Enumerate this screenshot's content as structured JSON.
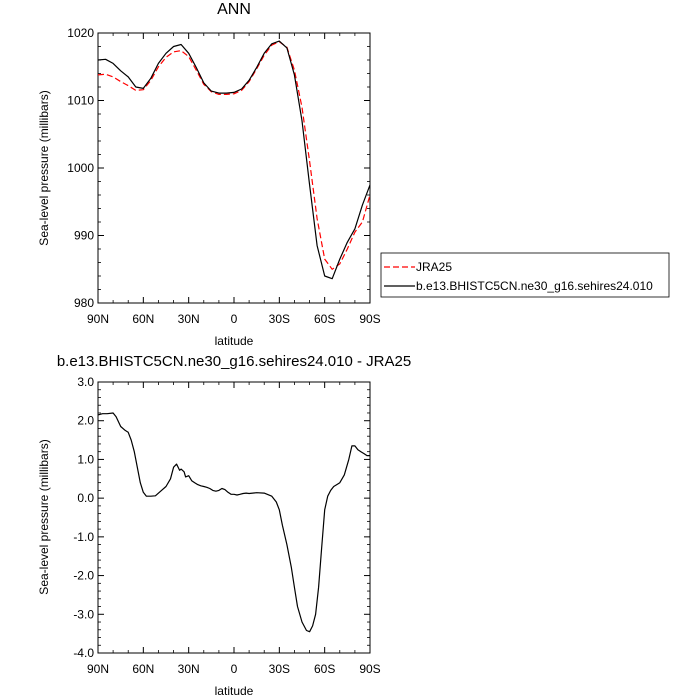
{
  "chart_data": [
    {
      "type": "line",
      "title": "ANN",
      "xlabel": "latitude",
      "ylabel": "Sea-level pressure (millibars)",
      "x_tick_labels": [
        "90N",
        "60N",
        "30N",
        "0",
        "30S",
        "60S",
        "90S"
      ],
      "x_ticks": [
        90,
        60,
        30,
        0,
        -30,
        -60,
        -90
      ],
      "xlim": [
        90,
        -90
      ],
      "ylim": [
        980,
        1020
      ],
      "y_ticks": [
        980,
        990,
        1000,
        1010,
        1020
      ],
      "y_tick_labels": [
        "980",
        "990",
        "1000",
        "1010",
        "1020"
      ],
      "legend_position": "right",
      "series": [
        {
          "name": "JRA25",
          "color": "#ff0000",
          "dash": "dashed",
          "x": [
            90,
            85,
            80,
            75,
            70,
            65,
            60,
            55,
            50,
            45,
            40,
            35,
            30,
            25,
            20,
            15,
            10,
            5,
            0,
            -5,
            -10,
            -15,
            -20,
            -25,
            -30,
            -35,
            -40,
            -45,
            -50,
            -55,
            -60,
            -65,
            -70,
            -75,
            -80,
            -85,
            -90
          ],
          "y": [
            1013.8,
            1013.9,
            1013.5,
            1012.8,
            1012.2,
            1011.5,
            1011.6,
            1013.0,
            1015.0,
            1016.4,
            1017.2,
            1017.4,
            1016.5,
            1014.5,
            1012.4,
            1011.3,
            1010.9,
            1010.9,
            1011.0,
            1011.5,
            1012.8,
            1014.7,
            1016.7,
            1018.2,
            1018.7,
            1017.9,
            1014.5,
            1009.0,
            1001.0,
            992.5,
            986.5,
            985.0,
            985.8,
            988.0,
            990.5,
            992.0,
            996.0
          ]
        },
        {
          "name": "b.e13.BHISTC5CN.ne30_g16.sehires24.010",
          "color": "#000000",
          "dash": "solid",
          "x": [
            90,
            85,
            80,
            75,
            70,
            65,
            60,
            55,
            50,
            45,
            40,
            35,
            30,
            25,
            20,
            15,
            10,
            5,
            0,
            -5,
            -10,
            -15,
            -20,
            -25,
            -30,
            -35,
            -40,
            -45,
            -50,
            -55,
            -60,
            -65,
            -70,
            -75,
            -80,
            -85,
            -90
          ],
          "y": [
            1016.0,
            1016.1,
            1015.5,
            1014.4,
            1013.5,
            1012.0,
            1011.8,
            1013.3,
            1015.5,
            1017.0,
            1018.0,
            1018.3,
            1017.0,
            1014.9,
            1012.6,
            1011.4,
            1011.1,
            1011.1,
            1011.2,
            1011.7,
            1013.0,
            1014.9,
            1017.0,
            1018.4,
            1018.8,
            1017.8,
            1013.8,
            1007.0,
            997.5,
            988.5,
            984.0,
            983.6,
            986.5,
            989.0,
            991.0,
            994.5,
            997.5
          ]
        }
      ]
    },
    {
      "type": "line",
      "title": "b.e13.BHISTC5CN.ne30_g16.sehires24.010 - JRA25",
      "xlabel": "latitude",
      "ylabel": "Sea-level pressure (millibars)",
      "x_tick_labels": [
        "90N",
        "60N",
        "30N",
        "0",
        "30S",
        "60S",
        "90S"
      ],
      "x_ticks": [
        90,
        60,
        30,
        0,
        -30,
        -60,
        -90
      ],
      "xlim": [
        90,
        -90
      ],
      "ylim": [
        -4.0,
        3.0
      ],
      "y_ticks": [
        -4.0,
        -3.0,
        -2.0,
        -1.0,
        0.0,
        1.0,
        2.0,
        3.0
      ],
      "y_tick_labels": [
        "-4.0",
        "-3.0",
        "-2.0",
        "-1.0",
        "0.0",
        "1.0",
        "2.0",
        "3.0"
      ],
      "series": [
        {
          "color": "#000000",
          "dash": "solid",
          "x": [
            90,
            87,
            84,
            80,
            78,
            75,
            72,
            70,
            68,
            66,
            64,
            62,
            60,
            58,
            55,
            52,
            48,
            45,
            42,
            40,
            38,
            36,
            35,
            33,
            32,
            30,
            28,
            26,
            24,
            22,
            20,
            18,
            16,
            14,
            12,
            10,
            8,
            6,
            4,
            2,
            0,
            -2,
            -4,
            -6,
            -8,
            -10,
            -15,
            -20,
            -25,
            -28,
            -30,
            -32,
            -35,
            -38,
            -40,
            -42,
            -45,
            -48,
            -50,
            -52,
            -54,
            -56,
            -58,
            -60,
            -62,
            -64,
            -66,
            -68,
            -70,
            -73,
            -76,
            -78,
            -80,
            -82,
            -84,
            -86,
            -88,
            -90
          ],
          "y": [
            2.15,
            2.18,
            2.18,
            2.2,
            2.1,
            1.85,
            1.75,
            1.7,
            1.5,
            1.2,
            0.8,
            0.4,
            0.15,
            0.05,
            0.05,
            0.06,
            0.2,
            0.3,
            0.5,
            0.8,
            0.88,
            0.72,
            0.75,
            0.68,
            0.55,
            0.58,
            0.45,
            0.4,
            0.35,
            0.32,
            0.3,
            0.28,
            0.25,
            0.2,
            0.18,
            0.2,
            0.25,
            0.22,
            0.15,
            0.1,
            0.1,
            0.08,
            0.1,
            0.12,
            0.13,
            0.12,
            0.14,
            0.13,
            0.05,
            -0.1,
            -0.3,
            -0.7,
            -1.2,
            -1.8,
            -2.3,
            -2.8,
            -3.2,
            -3.42,
            -3.45,
            -3.3,
            -3.0,
            -2.3,
            -1.3,
            -0.3,
            0.05,
            0.2,
            0.3,
            0.35,
            0.4,
            0.6,
            1.0,
            1.35,
            1.35,
            1.25,
            1.2,
            1.15,
            1.1,
            1.1
          ]
        }
      ]
    }
  ]
}
